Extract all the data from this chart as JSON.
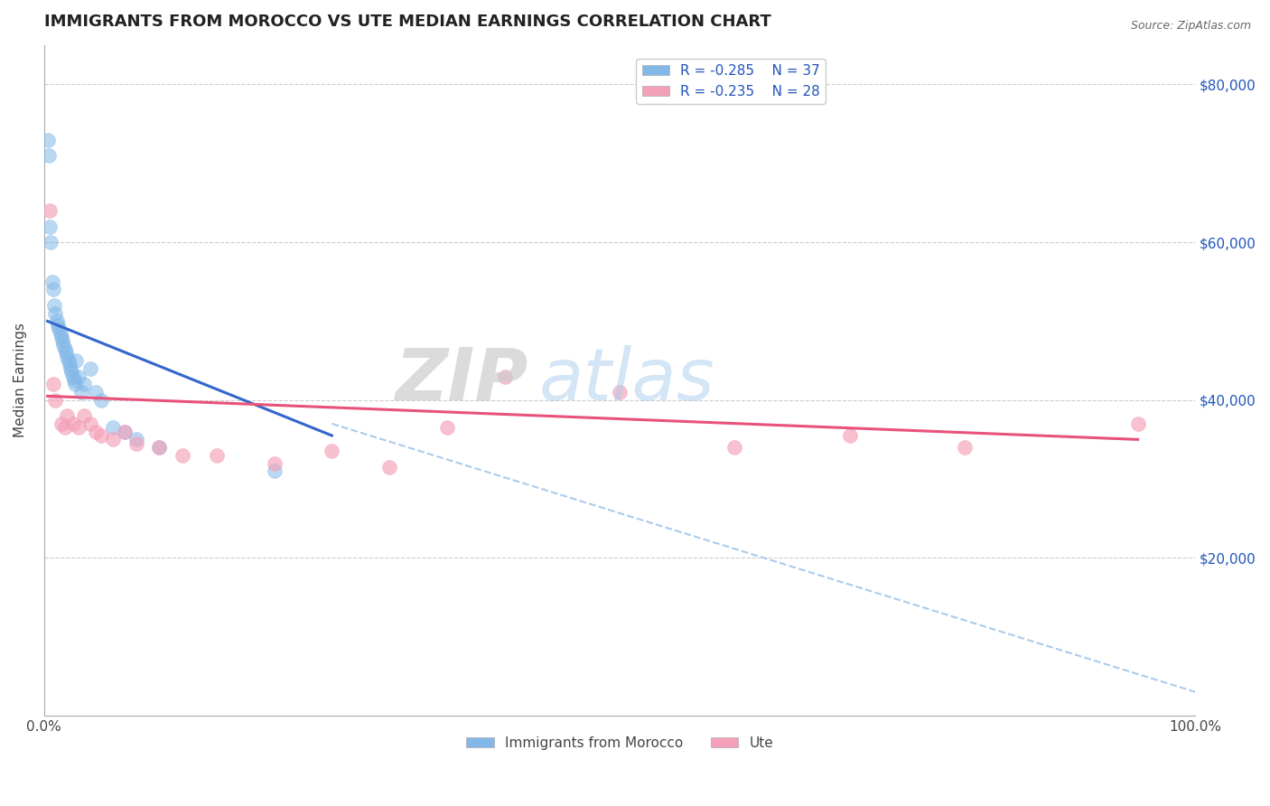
{
  "title": "IMMIGRANTS FROM MOROCCO VS UTE MEDIAN EARNINGS CORRELATION CHART",
  "source": "Source: ZipAtlas.com",
  "ylabel": "Median Earnings",
  "xmin": 0.0,
  "xmax": 100.0,
  "ymin": 0,
  "ymax": 85000,
  "yticks": [
    0,
    20000,
    40000,
    60000,
    80000
  ],
  "xticks": [
    0,
    100
  ],
  "xtick_labels": [
    "0.0%",
    "100.0%"
  ],
  "legend_r1": "R = -0.285",
  "legend_n1": "N = 37",
  "legend_r2": "R = -0.235",
  "legend_n2": "N = 28",
  "legend_label1": "Immigrants from Morocco",
  "legend_label2": "Ute",
  "blue_color": "#82b8e8",
  "pink_color": "#f4a0b8",
  "blue_line_color": "#3366cc",
  "pink_line_color": "#e8527a",
  "dash_line_color": "#aaccee",
  "blue_scatter_x": [
    0.3,
    0.4,
    0.5,
    0.6,
    0.7,
    0.8,
    0.9,
    1.0,
    1.1,
    1.2,
    1.3,
    1.4,
    1.5,
    1.6,
    1.7,
    1.8,
    1.9,
    2.0,
    2.1,
    2.2,
    2.3,
    2.4,
    2.5,
    2.6,
    2.7,
    2.8,
    3.0,
    3.2,
    3.5,
    4.0,
    4.5,
    5.0,
    6.0,
    7.0,
    8.0,
    10.0,
    20.0
  ],
  "blue_scatter_y": [
    73000,
    71000,
    62000,
    60000,
    55000,
    54000,
    52000,
    51000,
    50000,
    49500,
    49000,
    48500,
    48000,
    47500,
    47000,
    46500,
    46000,
    45500,
    45000,
    44500,
    44000,
    43500,
    43000,
    42500,
    42000,
    45000,
    43000,
    41000,
    42000,
    44000,
    41000,
    40000,
    36500,
    36000,
    35000,
    34000,
    31000
  ],
  "pink_scatter_x": [
    0.5,
    0.8,
    1.0,
    1.5,
    1.8,
    2.0,
    2.5,
    3.0,
    3.5,
    4.0,
    4.5,
    5.0,
    6.0,
    7.0,
    8.0,
    10.0,
    12.0,
    15.0,
    20.0,
    25.0,
    30.0,
    35.0,
    40.0,
    50.0,
    60.0,
    70.0,
    80.0,
    95.0
  ],
  "pink_scatter_y": [
    64000,
    42000,
    40000,
    37000,
    36500,
    38000,
    37000,
    36500,
    38000,
    37000,
    36000,
    35500,
    35000,
    36000,
    34500,
    34000,
    33000,
    33000,
    32000,
    33500,
    31500,
    36500,
    43000,
    41000,
    34000,
    35500,
    34000,
    37000
  ],
  "blue_line_x": [
    0.3,
    25.0
  ],
  "blue_line_y": [
    50000,
    35500
  ],
  "pink_line_x": [
    0.3,
    95.0
  ],
  "pink_line_y": [
    40500,
    35000
  ],
  "dash_line_x": [
    25.0,
    100.0
  ],
  "dash_line_y": [
    37000,
    3000
  ],
  "title_fontsize": 13,
  "label_fontsize": 11,
  "tick_fontsize": 11,
  "legend_fontsize": 11,
  "background_color": "#ffffff",
  "grid_color": "#cccccc"
}
